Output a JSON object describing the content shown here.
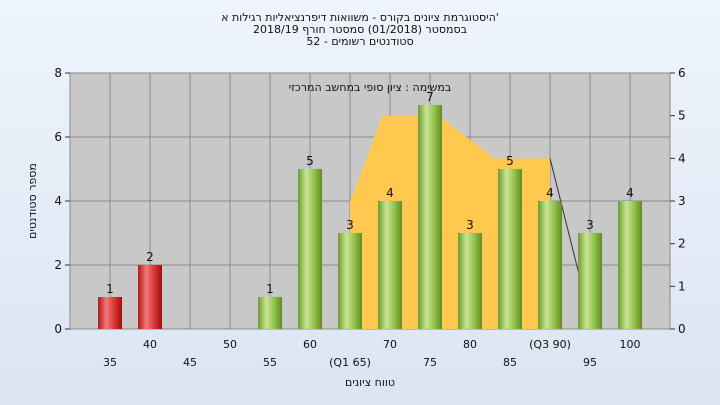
{
  "title_lines": [
    "היסטוגרמת ציונים בקורס - משוואות דיפרנציאליות רגילות א'",
    "בסמסטר  (01/2018)  סמסטר חורף  2018/19",
    "סטודנטים רשומים - 52"
  ],
  "chart_data": {
    "type": "bar",
    "annotation": "במשימה : ציון סופי במחשב המרכזי",
    "xlabel": "טווח ציונים",
    "ylabel": "מספר סטודנטים",
    "ylim": [
      0,
      8
    ],
    "y2lim": [
      0,
      6
    ],
    "yticks": [
      0,
      2,
      4,
      6,
      8
    ],
    "y2ticks": [
      0,
      1,
      2,
      3,
      4,
      5,
      6
    ],
    "grid": true,
    "categories": [
      35,
      40,
      45,
      50,
      55,
      60,
      65,
      70,
      75,
      80,
      85,
      90,
      95,
      100
    ],
    "category_labels": [
      "35",
      "40",
      "45",
      "50",
      "55",
      "60",
      "(Q1 65)",
      "70",
      "75",
      "80",
      "85",
      "(Q3 90)",
      "95",
      "100"
    ],
    "values": [
      1,
      2,
      0,
      0,
      1,
      5,
      3,
      4,
      7,
      3,
      5,
      4,
      3,
      4
    ],
    "colors": {
      "failing_bar": "#d93030",
      "passing_bar": "#8fc049",
      "box_fill": "#ffc84e",
      "plot_bg": "#c8c8c8"
    },
    "bar_color_groups": [
      "failing",
      "failing",
      "passing",
      "passing",
      "passing",
      "passing",
      "passing",
      "passing",
      "passing",
      "passing",
      "passing",
      "passing",
      "passing",
      "passing"
    ],
    "box_plot": {
      "q1": 65,
      "q3": 90,
      "min": 65,
      "max": 95,
      "q1_level": 3,
      "plateau_level": 5,
      "shoulder_level": 4,
      "plateau_from": 69,
      "plateau_to": 76,
      "shoulder_at": 83
    }
  }
}
